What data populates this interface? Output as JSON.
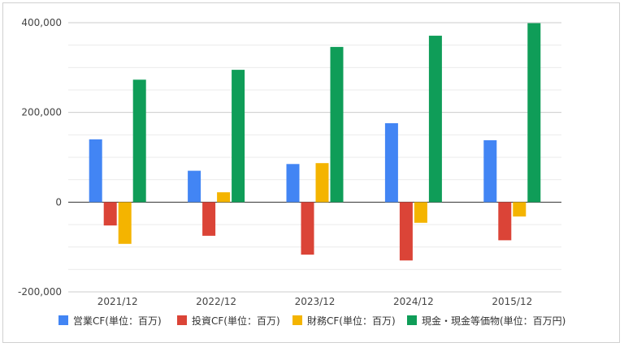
{
  "chart_data": {
    "type": "bar",
    "title": "",
    "xlabel": "",
    "ylabel": "",
    "categories": [
      "2021/12",
      "2022/12",
      "2023/12",
      "2024/12",
      "2015/12"
    ],
    "ylim": [
      -200000,
      400000
    ],
    "yticks": [
      -200000,
      0,
      200000,
      400000
    ],
    "ytick_labels": [
      "-200,000",
      "0",
      "200,000",
      "400,000"
    ],
    "grid": true,
    "legend_position": "bottom",
    "series": [
      {
        "name": "営業CF(単位：百万)",
        "color": "#4285F4",
        "values": [
          140000,
          70000,
          85000,
          176000,
          138000
        ]
      },
      {
        "name": "投資CF(単位：百万)",
        "color": "#DB4437",
        "values": [
          -52000,
          -75000,
          -117000,
          -130000,
          -85000
        ]
      },
      {
        "name": "財務CF(単位：百万)",
        "color": "#F4B400",
        "values": [
          -93000,
          22000,
          87000,
          -46000,
          -32000
        ]
      },
      {
        "name": "現金・現金等価物(単位：百万円)",
        "color": "#0F9D58",
        "values": [
          273000,
          295000,
          346000,
          371000,
          399000
        ]
      }
    ]
  }
}
